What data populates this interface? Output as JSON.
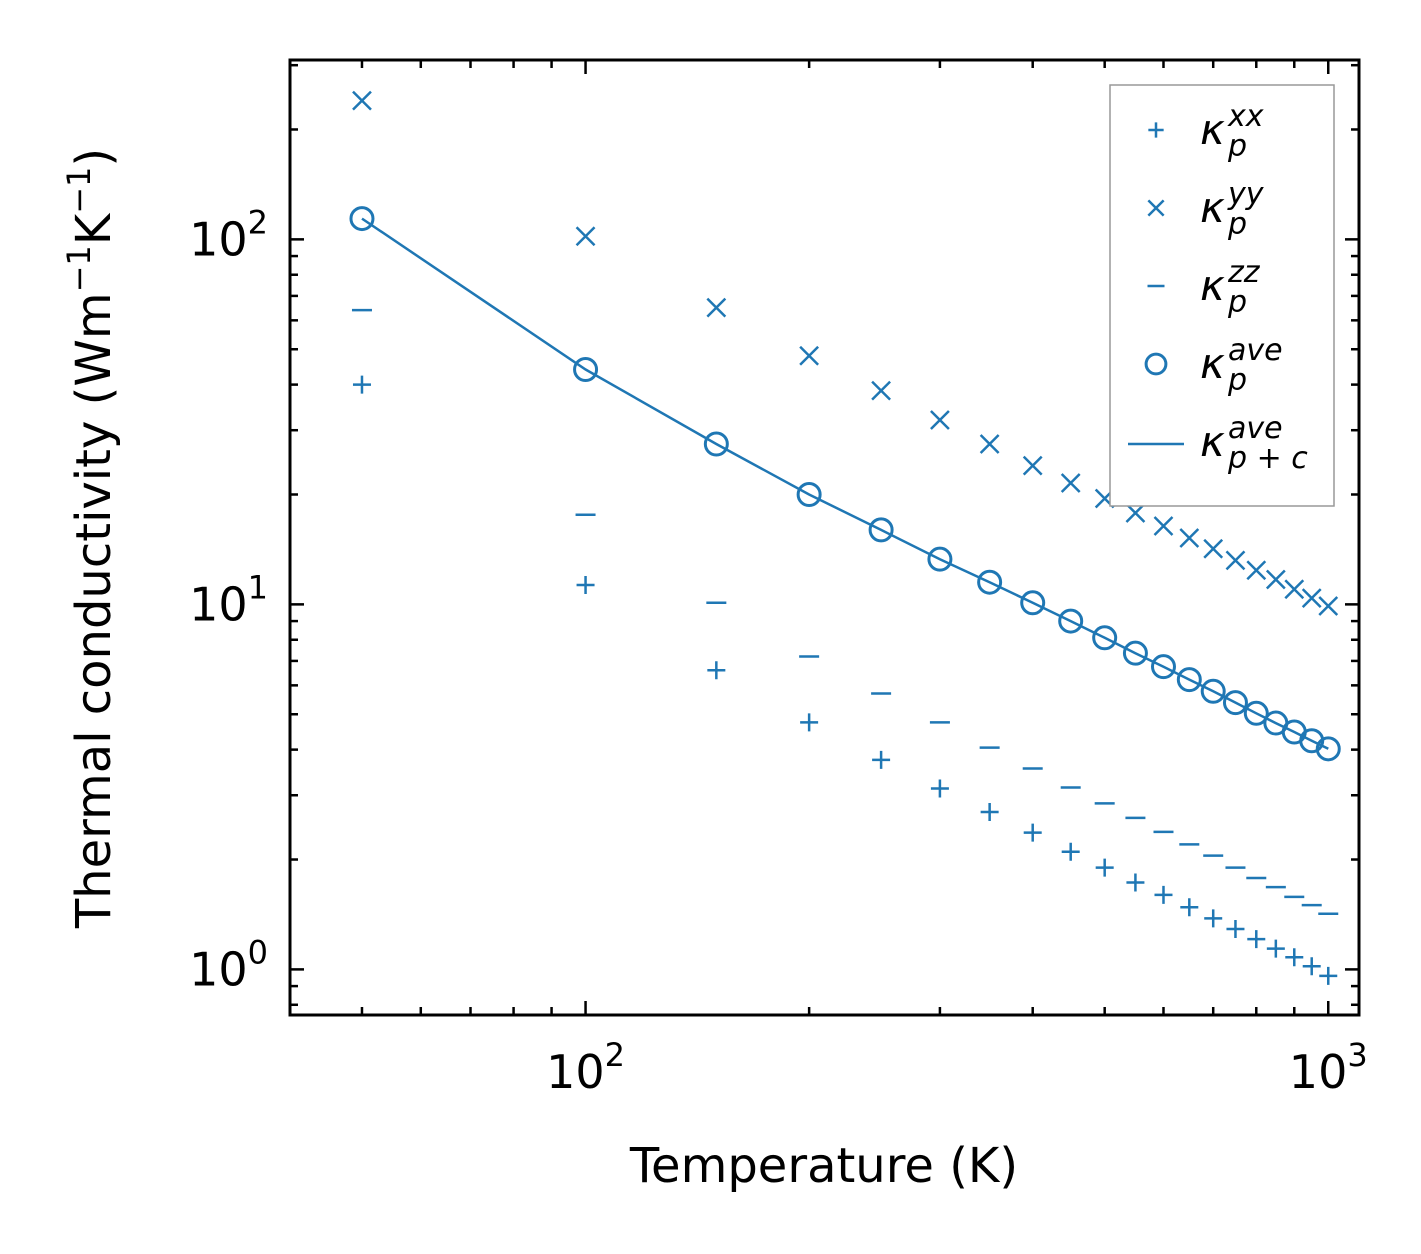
{
  "chart_data": {
    "type": "scatter",
    "title": "",
    "xlabel": "Temperature (K)",
    "ylabel_main": "Thermal conductivity (Wm",
    "ylabel_exp1": "−1",
    "ylabel_mid": "K",
    "ylabel_exp2": "−1",
    "ylabel_end": ")",
    "xscale": "log",
    "yscale": "log",
    "xlim": [
      40,
      1100
    ],
    "ylim": [
      0.75,
      310
    ],
    "x_ticks": [
      {
        "value": 100,
        "base": "10",
        "exp": "2"
      },
      {
        "value": 1000,
        "base": "10",
        "exp": "3"
      }
    ],
    "y_ticks": [
      {
        "value": 1,
        "base": "10",
        "exp": "0"
      },
      {
        "value": 10,
        "base": "10",
        "exp": "1"
      },
      {
        "value": 100,
        "base": "10",
        "exp": "2"
      }
    ],
    "color": "#1f77b4",
    "x": [
      50,
      100,
      150,
      200,
      250,
      300,
      350,
      400,
      450,
      500,
      550,
      600,
      650,
      700,
      750,
      800,
      850,
      900,
      950,
      1000
    ],
    "series": [
      {
        "name": "kappa_p^xx",
        "marker": "plus",
        "symbol": "κ",
        "sub": "p",
        "sup": "xx",
        "values": [
          40,
          11.3,
          6.6,
          4.75,
          3.75,
          3.13,
          2.7,
          2.37,
          2.1,
          1.9,
          1.73,
          1.6,
          1.48,
          1.38,
          1.29,
          1.21,
          1.14,
          1.08,
          1.02,
          0.96
        ]
      },
      {
        "name": "kappa_p^yy",
        "marker": "x",
        "symbol": "κ",
        "sub": "p",
        "sup": "yy",
        "values": [
          240,
          102,
          65,
          48,
          38.5,
          32,
          27.5,
          24,
          21.5,
          19.5,
          17.8,
          16.4,
          15.2,
          14.2,
          13.2,
          12.4,
          11.7,
          11.0,
          10.4,
          9.9
        ]
      },
      {
        "name": "kappa_p^zz",
        "marker": "hline",
        "symbol": "κ",
        "sub": "p",
        "sup": "zz",
        "values": [
          64,
          17.6,
          10.1,
          7.2,
          5.7,
          4.75,
          4.05,
          3.55,
          3.15,
          2.85,
          2.6,
          2.38,
          2.2,
          2.05,
          1.9,
          1.78,
          1.68,
          1.58,
          1.5,
          1.42
        ]
      },
      {
        "name": "kappa_p^ave",
        "marker": "circle",
        "symbol": "κ",
        "sub": "p",
        "sup": "ave",
        "values": [
          114,
          44,
          27.5,
          20,
          16,
          13.3,
          11.5,
          10.1,
          9.0,
          8.1,
          7.35,
          6.75,
          6.22,
          5.78,
          5.38,
          5.03,
          4.73,
          4.47,
          4.23,
          4.02
        ]
      },
      {
        "name": "kappa_p+c^ave",
        "marker": "line",
        "symbol": "κ",
        "sub": "p + c",
        "sup": "ave",
        "values": [
          114,
          44,
          27.5,
          20,
          16,
          13.3,
          11.5,
          10.1,
          9.0,
          8.1,
          7.35,
          6.75,
          6.22,
          5.78,
          5.38,
          5.03,
          4.73,
          4.47,
          4.23,
          4.02
        ]
      }
    ],
    "legend_position": "top-right",
    "grid": false
  }
}
